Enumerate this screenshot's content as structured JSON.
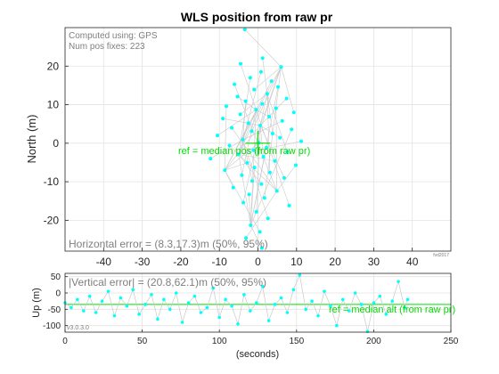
{
  "chart_data": [
    {
      "type": "scatter",
      "title": "WLS position from raw pr",
      "ylabel": "North (m)",
      "xlim": [
        -50,
        50
      ],
      "ylim": [
        -28,
        30
      ],
      "xticks": [
        -40,
        -30,
        -20,
        -10,
        0,
        10,
        20,
        30,
        40
      ],
      "yticks": [
        -20,
        -10,
        0,
        10,
        20
      ],
      "grid": true,
      "marker_color": "#00ffff",
      "line_color": "#c8c8c8",
      "reference_color": "#00dd00",
      "annotations": {
        "computed_using": "Computed using: GPS",
        "num_fixes": "Num pos fixes: 223",
        "reference_label": "ref = median pos (from raw pr)",
        "error_summary": "Horizontal error  = (8.3,17.3)m (50%, 95%)",
        "copyright": "fvd2017"
      },
      "reference_point": [
        0,
        0
      ],
      "points": [
        [
          -3.4,
          29.5
        ],
        [
          1.2,
          22.1
        ],
        [
          -4.5,
          20.6
        ],
        [
          6.0,
          19.8
        ],
        [
          0.8,
          18.5
        ],
        [
          -2.0,
          17.0
        ],
        [
          3.5,
          16.1
        ],
        [
          -6.1,
          15.3
        ],
        [
          5.2,
          14.6
        ],
        [
          -1.0,
          13.9
        ],
        [
          2.4,
          12.8
        ],
        [
          -5.3,
          12.1
        ],
        [
          7.4,
          11.6
        ],
        [
          -3.2,
          10.9
        ],
        [
          1.1,
          10.2
        ],
        [
          -8.2,
          9.6
        ],
        [
          4.7,
          9.1
        ],
        [
          -0.5,
          8.7
        ],
        [
          9.3,
          8.0
        ],
        [
          -4.6,
          7.5
        ],
        [
          2.9,
          6.9
        ],
        [
          -9.1,
          6.4
        ],
        [
          6.3,
          5.8
        ],
        [
          -2.5,
          5.2
        ],
        [
          0.6,
          4.6
        ],
        [
          -6.8,
          4.0
        ],
        [
          8.7,
          3.6
        ],
        [
          -1.6,
          3.1
        ],
        [
          3.8,
          2.5
        ],
        [
          -10.5,
          2.0
        ],
        [
          5.7,
          1.4
        ],
        [
          -3.9,
          0.9
        ],
        [
          11.2,
          0.5
        ],
        [
          0.2,
          0.1
        ],
        [
          -7.4,
          -0.6
        ],
        [
          2.2,
          -1.1
        ],
        [
          -1.2,
          -1.8
        ],
        [
          7.6,
          -2.3
        ],
        [
          -5.0,
          -2.9
        ],
        [
          1.4,
          -3.5
        ],
        [
          -12.3,
          -4.0
        ],
        [
          4.4,
          -4.6
        ],
        [
          -2.8,
          -5.1
        ],
        [
          9.8,
          -5.7
        ],
        [
          -0.9,
          -6.3
        ],
        [
          -8.6,
          -7.0
        ],
        [
          3.1,
          -7.6
        ],
        [
          -4.2,
          -8.3
        ],
        [
          6.8,
          -9.0
        ],
        [
          -1.5,
          -9.8
        ],
        [
          0.9,
          -10.6
        ],
        [
          -6.4,
          -11.5
        ],
        [
          4.9,
          -12.4
        ],
        [
          -2.3,
          -13.3
        ],
        [
          1.7,
          -14.2
        ],
        [
          -3.8,
          -15.4
        ],
        [
          8.1,
          -16.2
        ],
        [
          -0.4,
          -17.8
        ],
        [
          2.6,
          -19.5
        ],
        [
          -1.9,
          -21.3
        ],
        [
          0.5,
          -23.0
        ],
        [
          -3.1,
          -24.6
        ],
        [
          1.0,
          -27.2
        ]
      ]
    },
    {
      "type": "line",
      "ylabel": "Up (m)",
      "xlabel": "(seconds)",
      "xlim": [
        0,
        250
      ],
      "ylim": [
        -120,
        60
      ],
      "xticks": [
        0,
        50,
        100,
        150,
        200,
        250
      ],
      "yticks": [
        -100,
        -50,
        0,
        50
      ],
      "grid": true,
      "marker_color": "#00ffff",
      "reference_color": "#00dd00",
      "reference_value": -35,
      "annotations": {
        "error_summary": "|Vertical error| = (20.8,62.1)m (50%, 95%)",
        "reference_label": "ref = median alt (from raw pr)",
        "version": "v3.0.3.0"
      },
      "x": [
        0,
        4,
        8,
        12,
        16,
        20,
        24,
        28,
        32,
        36,
        40,
        44,
        48,
        52,
        56,
        60,
        64,
        68,
        72,
        76,
        80,
        84,
        88,
        92,
        96,
        100,
        104,
        108,
        112,
        116,
        120,
        124,
        128,
        132,
        136,
        140,
        144,
        148,
        152,
        156,
        160,
        164,
        168,
        172,
        176,
        180,
        184,
        188,
        192,
        196,
        200,
        204,
        208,
        212,
        216,
        220,
        222
      ],
      "values": [
        -30,
        -45,
        -20,
        -55,
        -10,
        -60,
        -25,
        5,
        -70,
        -15,
        -40,
        10,
        -65,
        -35,
        -5,
        -80,
        -20,
        -50,
        0,
        -90,
        -30,
        -10,
        -60,
        -45,
        15,
        -75,
        -20,
        -40,
        -95,
        -5,
        -55,
        -30,
        20,
        -85,
        -35,
        -15,
        -60,
        10,
        55,
        -50,
        -25,
        -70,
        5,
        -40,
        -100,
        -20,
        -55,
        0,
        -35,
        -118,
        -30,
        -10,
        -65,
        -25,
        35,
        -45,
        -20
      ]
    }
  ]
}
